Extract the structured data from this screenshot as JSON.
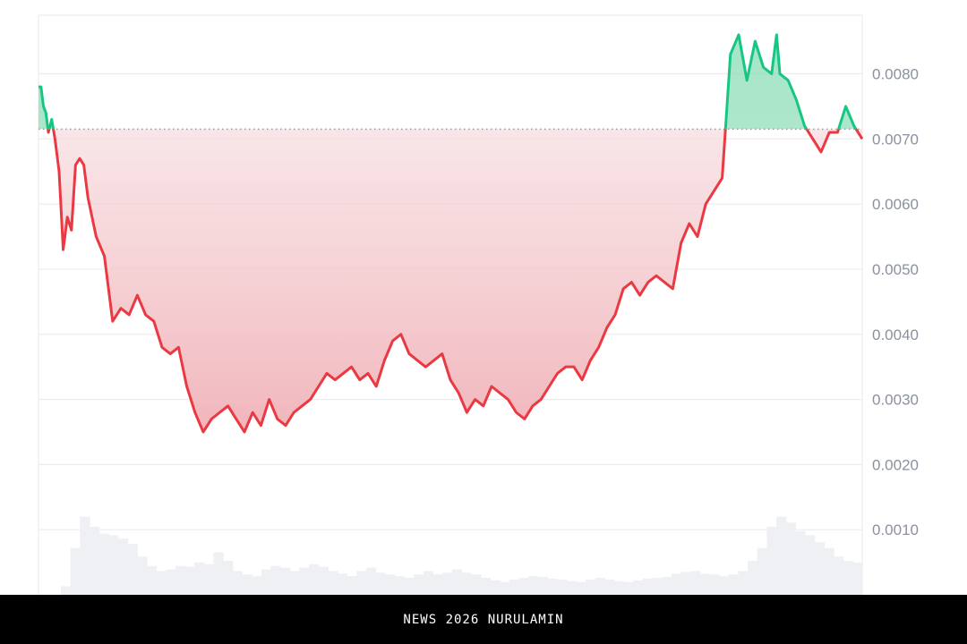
{
  "chart_data": {
    "type": "area",
    "baseline": 0.00715,
    "ylim": [
      0.0,
      0.0089
    ],
    "y_ticks": [
      "0.0080",
      "0.0070",
      "0.0060",
      "0.0050",
      "0.0040",
      "0.0030",
      "0.0020",
      "0.0010"
    ],
    "y_tick_values": [
      0.008,
      0.007,
      0.006,
      0.005,
      0.004,
      0.003,
      0.002,
      0.001
    ],
    "grid": true,
    "colors": {
      "above": "#16c784",
      "above_fill": "#bdebd6",
      "below": "#ea3943",
      "below_fill": "#f2b7bd",
      "grid": "#ececef",
      "volume": "#eef0f3",
      "baseline_dots": "#9a9aa6"
    },
    "series": [
      {
        "x": [
          0,
          0.3,
          0.6,
          0.9,
          1.2,
          1.6,
          2,
          2.5,
          3,
          3.5,
          4,
          4.5,
          5,
          5.5,
          6,
          7,
          8,
          9,
          10,
          11,
          12,
          13,
          14,
          15,
          16,
          17,
          18,
          19,
          20,
          21,
          22,
          23,
          24,
          25,
          26,
          27,
          28,
          29,
          30,
          31,
          32,
          33,
          34,
          35,
          36,
          37,
          38,
          39,
          40,
          41,
          42,
          43,
          44,
          45,
          46,
          47,
          48,
          49,
          50,
          51,
          52,
          53,
          54,
          55,
          56,
          57,
          58,
          59,
          60,
          61,
          62,
          63,
          64,
          65,
          66,
          67,
          68,
          69,
          70,
          71,
          72,
          73,
          74,
          75,
          76,
          77,
          78,
          79,
          80,
          81,
          82,
          83,
          84,
          85,
          86,
          87,
          88,
          89,
          89.6,
          90,
          91,
          92,
          93,
          94,
          95,
          96,
          97,
          98,
          99,
          99.5,
          100
        ],
        "y": [
          0.0078,
          0.0078,
          0.0075,
          0.0074,
          0.0071,
          0.0073,
          0.007,
          0.0065,
          0.0053,
          0.0058,
          0.0056,
          0.0066,
          0.0067,
          0.0066,
          0.0061,
          0.0055,
          0.0052,
          0.0042,
          0.0044,
          0.0043,
          0.0046,
          0.0043,
          0.0042,
          0.0038,
          0.0037,
          0.0038,
          0.0032,
          0.0028,
          0.0025,
          0.0027,
          0.0028,
          0.0029,
          0.0027,
          0.0025,
          0.0028,
          0.0026,
          0.003,
          0.0027,
          0.0026,
          0.0028,
          0.0029,
          0.003,
          0.0032,
          0.0034,
          0.0033,
          0.0034,
          0.0035,
          0.0033,
          0.0034,
          0.0032,
          0.0036,
          0.0039,
          0.004,
          0.0037,
          0.0036,
          0.0035,
          0.0036,
          0.0037,
          0.0033,
          0.0031,
          0.0028,
          0.003,
          0.0029,
          0.0032,
          0.0031,
          0.003,
          0.0028,
          0.0027,
          0.0029,
          0.003,
          0.0032,
          0.0034,
          0.0035,
          0.0035,
          0.0033,
          0.0036,
          0.0038,
          0.0041,
          0.0043,
          0.0047,
          0.0048,
          0.0046,
          0.0048,
          0.0049,
          0.0048,
          0.0047,
          0.0054,
          0.0057,
          0.0055,
          0.006,
          0.0062,
          0.0064,
          0.0083,
          0.0086,
          0.0079,
          0.0085,
          0.0081,
          0.008,
          0.0086,
          0.008,
          0.0079,
          0.0076,
          0.0072,
          0.007,
          0.0068,
          0.0071,
          0.0071,
          0.0075,
          0.0072,
          0.0071,
          0.007
        ]
      }
    ],
    "volume": [
      0.1,
      0.55,
      0.92,
      0.8,
      0.72,
      0.7,
      0.66,
      0.6,
      0.45,
      0.34,
      0.28,
      0.3,
      0.34,
      0.33,
      0.38,
      0.36,
      0.5,
      0.4,
      0.28,
      0.24,
      0.22,
      0.3,
      0.34,
      0.32,
      0.28,
      0.32,
      0.36,
      0.33,
      0.28,
      0.25,
      0.22,
      0.28,
      0.32,
      0.26,
      0.24,
      0.22,
      0.2,
      0.24,
      0.28,
      0.24,
      0.26,
      0.3,
      0.26,
      0.24,
      0.2,
      0.17,
      0.15,
      0.18,
      0.2,
      0.22,
      0.21,
      0.19,
      0.18,
      0.16,
      0.15,
      0.18,
      0.2,
      0.18,
      0.16,
      0.15,
      0.17,
      0.19,
      0.2,
      0.21,
      0.25,
      0.27,
      0.28,
      0.25,
      0.24,
      0.22,
      0.24,
      0.28,
      0.4,
      0.55,
      0.8,
      0.92,
      0.85,
      0.75,
      0.7,
      0.62,
      0.55,
      0.45,
      0.4,
      0.38
    ]
  },
  "footer": {
    "text": "NEWS 2026 NURULAMIN"
  }
}
